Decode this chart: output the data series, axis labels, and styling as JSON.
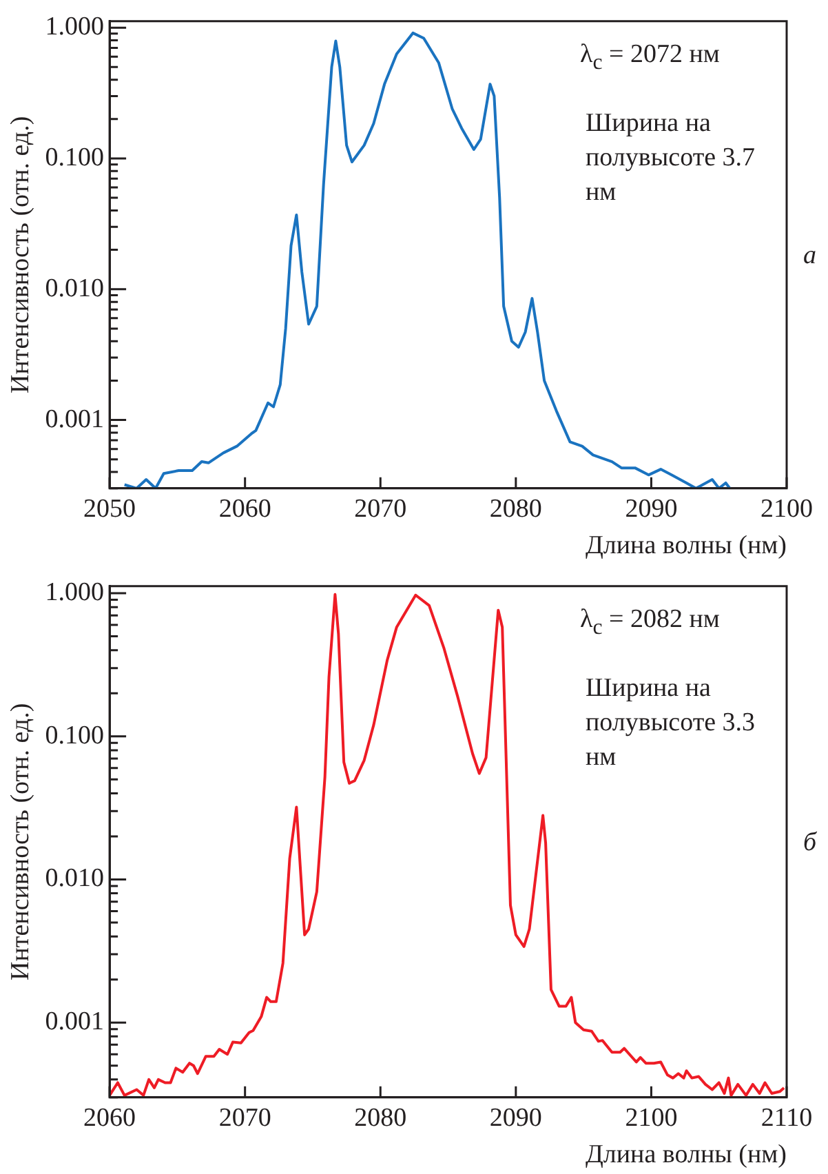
{
  "chart_data": [
    {
      "type": "line",
      "xlabel": "Длина волны (нм)",
      "ylabel": "Интенсивность (отн. ед.)",
      "annotations": [
        "λ$_{c}$ = 2072 нм",
        "Ширина на полувысоте 3.7 нм",
        "а"
      ],
      "x": [
        2051.1,
        2052,
        2052.7,
        2053.4,
        2054,
        2055.1,
        2056.1,
        2056.8,
        2057.3,
        2058.4,
        2059.4,
        2060.5,
        2060.8,
        2061.7,
        2062.1,
        2062.6,
        2063,
        2063.4,
        2063.8,
        2064.2,
        2064.7,
        2065.3,
        2065.8,
        2066.4,
        2066.7,
        2067,
        2067.5,
        2067.9,
        2068.8,
        2069.5,
        2070.3,
        2071.2,
        2072.4,
        2073.2,
        2074.3,
        2075.3,
        2076,
        2076.9,
        2077.4,
        2078.1,
        2078.4,
        2078.8,
        2079.1,
        2079.7,
        2080.2,
        2080.7,
        2081.2,
        2081.6,
        2082.1,
        2083,
        2084,
        2084.9,
        2085.7,
        2087.1,
        2087.8,
        2088.8,
        2089.8,
        2090.7,
        2091.5,
        2092.6,
        2093.3,
        2094.5,
        2095,
        2095.5,
        2095.8
      ],
      "series": [
        {
          "color": "#1a73c0",
          "values": [
            0.00032,
            0.0003,
            0.00035,
            0.0003,
            0.00039,
            0.00041,
            0.00041,
            0.00048,
            0.00047,
            0.00056,
            0.00063,
            0.00079,
            0.00083,
            0.00135,
            0.00126,
            0.00186,
            0.005,
            0.0215,
            0.037,
            0.0135,
            0.0054,
            0.0074,
            0.063,
            0.5,
            0.79,
            0.5,
            0.126,
            0.094,
            0.126,
            0.185,
            0.37,
            0.63,
            0.91,
            0.83,
            0.54,
            0.24,
            0.17,
            0.117,
            0.14,
            0.37,
            0.3,
            0.05,
            0.0074,
            0.004,
            0.0036,
            0.0047,
            0.0085,
            0.0047,
            0.002,
            0.00117,
            0.00068,
            0.00063,
            0.00054,
            0.00048,
            0.00043,
            0.00043,
            0.00038,
            0.00042,
            0.00038,
            0.00033,
            0.0003,
            0.00035,
            0.0003,
            0.00033,
            0.0003
          ]
        }
      ],
      "xlim": [
        2050,
        2100
      ],
      "xticks": [
        2050,
        2060,
        2070,
        2080,
        2090,
        2100
      ],
      "ylim": [
        0.0003,
        1.12
      ],
      "yticks": [
        {
          "value": 0.0003,
          "label": null
        },
        {
          "value": 0.0004,
          "label": null
        },
        {
          "value": 0.0005,
          "label": null
        },
        {
          "value": 0.0006,
          "label": null
        },
        {
          "value": 0.0007,
          "label": null
        },
        {
          "value": 0.0008,
          "label": null
        },
        {
          "value": 0.0009,
          "label": null
        },
        {
          "value": 0.001,
          "label": "0.001"
        },
        {
          "value": 0.002,
          "label": null
        },
        {
          "value": 0.003,
          "label": null
        },
        {
          "value": 0.004,
          "label": null
        },
        {
          "value": 0.005,
          "label": null
        },
        {
          "value": 0.006,
          "label": null
        },
        {
          "value": 0.007,
          "label": null
        },
        {
          "value": 0.008,
          "label": null
        },
        {
          "value": 0.009,
          "label": null
        },
        {
          "value": 0.01,
          "label": "0.010"
        },
        {
          "value": 0.02,
          "label": null
        },
        {
          "value": 0.03,
          "label": null
        },
        {
          "value": 0.04,
          "label": null
        },
        {
          "value": 0.05,
          "label": null
        },
        {
          "value": 0.06,
          "label": null
        },
        {
          "value": 0.07,
          "label": null
        },
        {
          "value": 0.08,
          "label": null
        },
        {
          "value": 0.09,
          "label": null
        },
        {
          "value": 0.1,
          "label": "0.100"
        },
        {
          "value": 0.2,
          "label": null
        },
        {
          "value": 0.3,
          "label": null
        },
        {
          "value": 0.4,
          "label": null
        },
        {
          "value": 0.5,
          "label": null
        },
        {
          "value": 0.6,
          "label": null
        },
        {
          "value": 0.7,
          "label": null
        },
        {
          "value": 0.8,
          "label": null
        },
        {
          "value": 0.9,
          "label": null
        },
        {
          "value": 1,
          "label": "1.000"
        }
      ],
      "log": "y",
      "grid": false,
      "legend": false,
      "marker": "none",
      "line_style": "solid"
    },
    {
      "type": "line",
      "xlabel": "Длина волны (нм)",
      "ylabel": "Интенсивность (отн. ед.)",
      "annotations": [
        "λ$_{c}$ = 2082 нм",
        "Ширина на полувысоте 3.3 нм",
        "б"
      ],
      "x": [
        2060,
        2060.6,
        2061.1,
        2062,
        2062.5,
        2062.9,
        2063.3,
        2063.6,
        2064.1,
        2064.5,
        2064.9,
        2065.4,
        2065.9,
        2066.2,
        2066.5,
        2067.1,
        2067.7,
        2068.1,
        2068.7,
        2069.1,
        2069.7,
        2070.3,
        2070.6,
        2071.2,
        2071.6,
        2071.9,
        2072.3,
        2072.8,
        2073.3,
        2073.8,
        2074.4,
        2074.7,
        2075.3,
        2075.9,
        2076.2,
        2076.65,
        2076.9,
        2077.3,
        2077.7,
        2078.1,
        2078.8,
        2079.5,
        2080.5,
        2081.2,
        2082.6,
        2083.6,
        2084.7,
        2085.7,
        2086.8,
        2087.3,
        2087.8,
        2088.7,
        2089,
        2089.6,
        2090,
        2090.6,
        2091,
        2092,
        2092.2,
        2092.6,
        2093.2,
        2093.7,
        2094.1,
        2094.4,
        2095,
        2095.6,
        2096.1,
        2096.4,
        2097.1,
        2097.7,
        2098,
        2098.9,
        2099.2,
        2099.6,
        2100.2,
        2100.7,
        2101.2,
        2101.6,
        2102,
        2102.4,
        2102.6,
        2103,
        2103.5,
        2104,
        2104.5,
        2105,
        2105.4,
        2105.7,
        2105.9,
        2106.4,
        2107,
        2107.5,
        2108,
        2108.4,
        2108.9,
        2109.5,
        2109.8
      ],
      "series": [
        {
          "color": "#ee1c25",
          "values": [
            0.00031,
            0.00038,
            0.00031,
            0.00034,
            0.00031,
            0.0004,
            0.00035,
            0.0004,
            0.00038,
            0.00038,
            0.00048,
            0.00045,
            0.00052,
            0.0005,
            0.00044,
            0.00058,
            0.00058,
            0.00065,
            0.0006,
            0.00073,
            0.00072,
            0.00085,
            0.00088,
            0.0011,
            0.0015,
            0.0014,
            0.0014,
            0.0026,
            0.014,
            0.032,
            0.0041,
            0.0045,
            0.0082,
            0.052,
            0.26,
            0.98,
            0.52,
            0.066,
            0.047,
            0.049,
            0.068,
            0.12,
            0.34,
            0.58,
            0.97,
            0.82,
            0.41,
            0.19,
            0.076,
            0.055,
            0.071,
            0.76,
            0.58,
            0.0066,
            0.0041,
            0.0034,
            0.0045,
            0.028,
            0.018,
            0.0017,
            0.0013,
            0.0013,
            0.0015,
            0.001,
            0.00089,
            0.00087,
            0.00074,
            0.00075,
            0.00062,
            0.00062,
            0.00066,
            0.00053,
            0.00057,
            0.00052,
            0.00052,
            0.00053,
            0.00043,
            0.00041,
            0.00044,
            0.00041,
            0.00046,
            0.00041,
            0.00042,
            0.00037,
            0.00034,
            0.00038,
            0.00032,
            0.00041,
            0.00031,
            0.00037,
            0.00031,
            0.00037,
            0.00032,
            0.00038,
            0.00032,
            0.00033,
            0.00035
          ]
        }
      ],
      "xlim": [
        2060,
        2110
      ],
      "xticks": [
        2060,
        2070,
        2080,
        2090,
        2100,
        2110
      ],
      "ylim": [
        0.0003,
        1.12
      ],
      "yticks": [
        {
          "value": 0.0003,
          "label": null
        },
        {
          "value": 0.0004,
          "label": null
        },
        {
          "value": 0.0005,
          "label": null
        },
        {
          "value": 0.0006,
          "label": null
        },
        {
          "value": 0.0007,
          "label": null
        },
        {
          "value": 0.0008,
          "label": null
        },
        {
          "value": 0.0009,
          "label": null
        },
        {
          "value": 0.001,
          "label": "0.001"
        },
        {
          "value": 0.002,
          "label": null
        },
        {
          "value": 0.003,
          "label": null
        },
        {
          "value": 0.004,
          "label": null
        },
        {
          "value": 0.005,
          "label": null
        },
        {
          "value": 0.006,
          "label": null
        },
        {
          "value": 0.007,
          "label": null
        },
        {
          "value": 0.008,
          "label": null
        },
        {
          "value": 0.009,
          "label": null
        },
        {
          "value": 0.01,
          "label": "0.010"
        },
        {
          "value": 0.02,
          "label": null
        },
        {
          "value": 0.03,
          "label": null
        },
        {
          "value": 0.04,
          "label": null
        },
        {
          "value": 0.05,
          "label": null
        },
        {
          "value": 0.06,
          "label": null
        },
        {
          "value": 0.07,
          "label": null
        },
        {
          "value": 0.08,
          "label": null
        },
        {
          "value": 0.09,
          "label": null
        },
        {
          "value": 0.1,
          "label": "0.100"
        },
        {
          "value": 0.2,
          "label": null
        },
        {
          "value": 0.3,
          "label": null
        },
        {
          "value": 0.4,
          "label": null
        },
        {
          "value": 0.5,
          "label": null
        },
        {
          "value": 0.6,
          "label": null
        },
        {
          "value": 0.7,
          "label": null
        },
        {
          "value": 0.8,
          "label": null
        },
        {
          "value": 0.9,
          "label": null
        },
        {
          "value": 1,
          "label": "1.000"
        }
      ],
      "log": "y",
      "grid": false,
      "legend": false,
      "marker": "none",
      "line_style": "solid"
    }
  ]
}
